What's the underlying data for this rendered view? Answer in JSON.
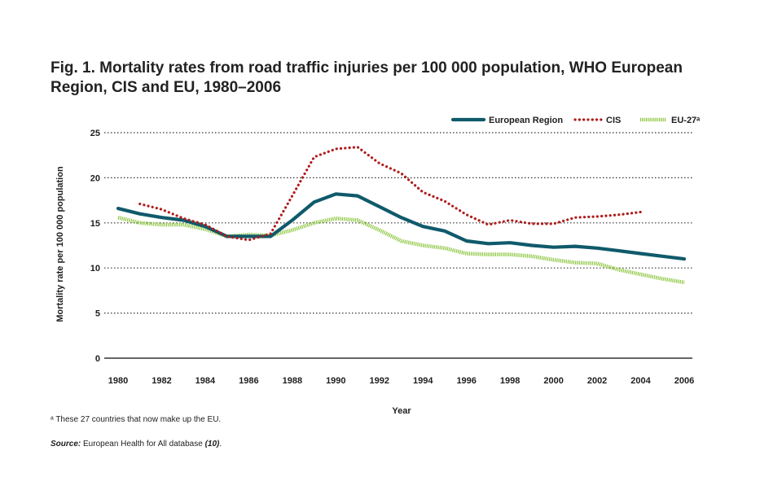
{
  "title": "Fig. 1. Mortality rates from road traffic injuries per 100 000 population, WHO European Region, CIS and EU, 1980–2006",
  "footnote": "ᵃ These 27 countries that now make up the EU.",
  "source": {
    "label": "Source:",
    "text": " European Health for All database ",
    "ref": "(10)",
    "end": "."
  },
  "colors": {
    "european_region": "#0f5a6b",
    "cis": "#b01c1c",
    "eu27": "#8cc63f",
    "grid": "#333333"
  },
  "chart_data": {
    "type": "line",
    "title": "Fig. 1. Mortality rates from road traffic injuries per 100 000 population, WHO European Region, CIS and EU, 1980–2006",
    "xlabel": "Year",
    "ylabel": "Mortality rate per 100 000 population",
    "xlim": [
      1980,
      2006
    ],
    "ylim": [
      0,
      25
    ],
    "xticks": [
      "1980",
      "1982",
      "1984",
      "1986",
      "1988",
      "1990",
      "1992",
      "1994",
      "1996",
      "1998",
      "2000",
      "2002",
      "2004",
      "2006"
    ],
    "yticks": [
      "0",
      "5",
      "10",
      "15",
      "20",
      "25"
    ],
    "grid": "horizontal dotted",
    "legend_position": "top-right",
    "series": [
      {
        "name": "European Region",
        "style": "solid-thick",
        "x": [
          1980,
          1981,
          1982,
          1983,
          1984,
          1985,
          1986,
          1987,
          1988,
          1989,
          1990,
          1991,
          1992,
          1993,
          1994,
          1995,
          1996,
          1997,
          1998,
          1999,
          2000,
          2001,
          2002,
          2003,
          2004,
          2005,
          2006
        ],
        "y": [
          16.6,
          16.0,
          15.6,
          15.3,
          14.6,
          13.5,
          13.5,
          13.5,
          15.3,
          17.3,
          18.2,
          18.0,
          16.8,
          15.6,
          14.6,
          14.1,
          13.0,
          12.7,
          12.8,
          12.5,
          12.3,
          12.4,
          12.2,
          11.9,
          11.6,
          11.3,
          11.0
        ]
      },
      {
        "name": "CIS",
        "style": "dotted",
        "x": [
          1981,
          1982,
          1983,
          1984,
          1985,
          1986,
          1987,
          1988,
          1989,
          1990,
          1991,
          1992,
          1993,
          1994,
          1995,
          1996,
          1997,
          1998,
          1999,
          2000,
          2001,
          2002,
          2003,
          2004
        ],
        "y": [
          17.1,
          16.5,
          15.5,
          14.8,
          13.5,
          13.1,
          13.8,
          18.0,
          22.3,
          23.2,
          23.4,
          21.6,
          20.5,
          18.4,
          17.4,
          15.9,
          14.8,
          15.3,
          14.9,
          14.9,
          15.6,
          15.7,
          15.9,
          16.2
        ]
      },
      {
        "name": "EU-27ᵃ",
        "style": "dashed-thick",
        "x": [
          1980,
          1981,
          1982,
          1983,
          1984,
          1985,
          1986,
          1987,
          1988,
          1989,
          1990,
          1991,
          1992,
          1993,
          1994,
          1995,
          1996,
          1997,
          1998,
          1999,
          2000,
          2001,
          2002,
          2003,
          2004,
          2005,
          2006
        ],
        "y": [
          15.6,
          15.0,
          14.8,
          14.8,
          14.3,
          13.5,
          13.7,
          13.6,
          14.2,
          15.0,
          15.5,
          15.3,
          14.2,
          13.0,
          12.5,
          12.2,
          11.6,
          11.5,
          11.5,
          11.3,
          10.9,
          10.6,
          10.5,
          9.8,
          9.3,
          8.8,
          8.4
        ]
      }
    ]
  }
}
